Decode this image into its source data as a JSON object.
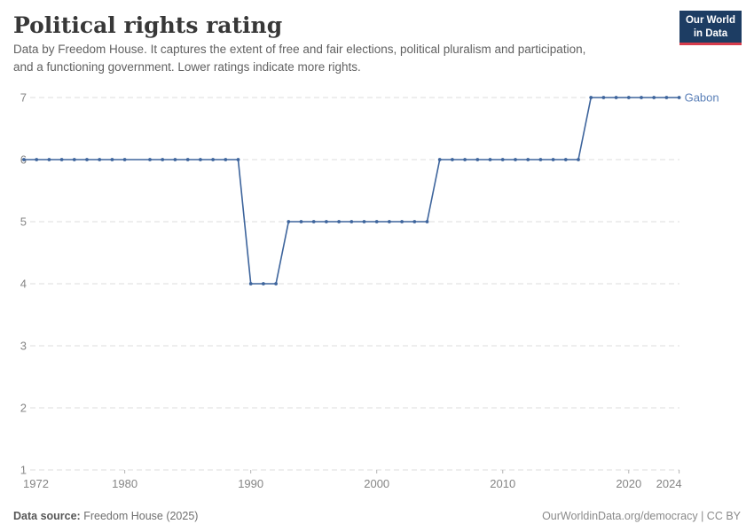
{
  "header": {
    "title": "Political rights rating",
    "subtitle_line1": "Data by Freedom House. It captures the extent of free and fair elections, political pluralism and participation,",
    "subtitle_line2": "and a functioning government. Lower ratings indicate more rights.",
    "logo": {
      "line1": "Our World",
      "line2": "in Data",
      "bg_color": "#1d3d63",
      "accent_color": "#d73c4c"
    }
  },
  "chart_data": {
    "type": "line",
    "title": "Political rights rating",
    "xlabel": "",
    "ylabel": "",
    "xlim": [
      1972,
      2024
    ],
    "ylim": [
      1,
      7
    ],
    "x_ticks": [
      1972,
      1980,
      1990,
      2000,
      2010,
      2020,
      2024
    ],
    "y_ticks": [
      1,
      2,
      3,
      4,
      5,
      6,
      7
    ],
    "grid": "horizontal-dashed",
    "legend_position": "end-of-line-label",
    "series": [
      {
        "name": "Gabon",
        "color": "#3d649c",
        "label_color": "#5b80b8",
        "points": [
          [
            1972,
            6
          ],
          [
            1973,
            6
          ],
          [
            1974,
            6
          ],
          [
            1975,
            6
          ],
          [
            1976,
            6
          ],
          [
            1977,
            6
          ],
          [
            1978,
            6
          ],
          [
            1979,
            6
          ],
          [
            1980,
            6
          ],
          [
            1981,
            6
          ],
          [
            1982,
            6
          ],
          [
            1983,
            6
          ],
          [
            1984,
            6
          ],
          [
            1985,
            6
          ],
          [
            1986,
            6
          ],
          [
            1987,
            6
          ],
          [
            1988,
            6
          ],
          [
            1989,
            6
          ],
          [
            1990,
            4
          ],
          [
            1991,
            4
          ],
          [
            1992,
            4
          ],
          [
            1993,
            5
          ],
          [
            1994,
            5
          ],
          [
            1995,
            5
          ],
          [
            1996,
            5
          ],
          [
            1997,
            5
          ],
          [
            1998,
            5
          ],
          [
            1999,
            5
          ],
          [
            2000,
            5
          ],
          [
            2001,
            5
          ],
          [
            2002,
            5
          ],
          [
            2003,
            5
          ],
          [
            2004,
            5
          ],
          [
            2005,
            6
          ],
          [
            2006,
            6
          ],
          [
            2007,
            6
          ],
          [
            2008,
            6
          ],
          [
            2009,
            6
          ],
          [
            2010,
            6
          ],
          [
            2011,
            6
          ],
          [
            2012,
            6
          ],
          [
            2013,
            6
          ],
          [
            2014,
            6
          ],
          [
            2015,
            6
          ],
          [
            2016,
            6
          ],
          [
            2017,
            7
          ],
          [
            2018,
            7
          ],
          [
            2019,
            7
          ],
          [
            2020,
            7
          ],
          [
            2021,
            7
          ],
          [
            2022,
            7
          ],
          [
            2023,
            7
          ],
          [
            2024,
            7
          ]
        ],
        "no_marker_years": [
          1981
        ]
      }
    ]
  },
  "footer": {
    "source_label": "Data source:",
    "source_value": "Freedom House (2025)",
    "link_text": "OurWorldinData.org/democracy | CC BY"
  }
}
